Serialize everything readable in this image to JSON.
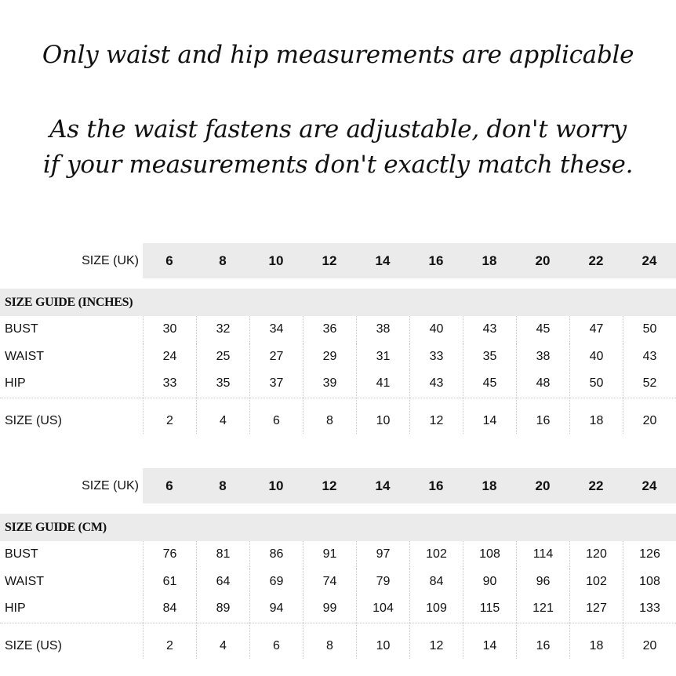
{
  "headings": [
    "Only waist and hip measurements are applicable",
    "As the waist fastens are adjustable, don't worry",
    "if your measurements don't exactly match these."
  ],
  "tables": [
    {
      "uk_label": "SIZE (UK)",
      "uk_sizes": [
        "6",
        "8",
        "10",
        "12",
        "14",
        "16",
        "18",
        "20",
        "22",
        "24"
      ],
      "section_title": "SIZE GUIDE (INCHES)",
      "rows": [
        {
          "label": "BUST",
          "values": [
            "30",
            "32",
            "34",
            "36",
            "38",
            "40",
            "43",
            "45",
            "47",
            "50"
          ]
        },
        {
          "label": "WAIST",
          "values": [
            "24",
            "25",
            "27",
            "29",
            "31",
            "33",
            "35",
            "38",
            "40",
            "43"
          ]
        },
        {
          "label": "HIP",
          "values": [
            "33",
            "35",
            "37",
            "39",
            "41",
            "43",
            "45",
            "48",
            "50",
            "52"
          ]
        }
      ],
      "us_label": "SIZE (US)",
      "us_sizes": [
        "2",
        "4",
        "6",
        "8",
        "10",
        "12",
        "14",
        "16",
        "18",
        "20"
      ]
    },
    {
      "uk_label": "SIZE (UK)",
      "uk_sizes": [
        "6",
        "8",
        "10",
        "12",
        "14",
        "16",
        "18",
        "20",
        "22",
        "24"
      ],
      "section_title": "SIZE GUIDE (CM)",
      "rows": [
        {
          "label": "BUST",
          "values": [
            "76",
            "81",
            "86",
            "91",
            "97",
            "102",
            "108",
            "114",
            "120",
            "126"
          ]
        },
        {
          "label": "WAIST",
          "values": [
            "61",
            "64",
            "69",
            "74",
            "79",
            "84",
            "90",
            "96",
            "102",
            "108"
          ]
        },
        {
          "label": "HIP",
          "values": [
            "84",
            "89",
            "94",
            "99",
            "104",
            "109",
            "115",
            "121",
            "127",
            "133"
          ]
        }
      ],
      "us_label": "SIZE (US)",
      "us_sizes": [
        "2",
        "4",
        "6",
        "8",
        "10",
        "12",
        "14",
        "16",
        "18",
        "20"
      ]
    }
  ]
}
